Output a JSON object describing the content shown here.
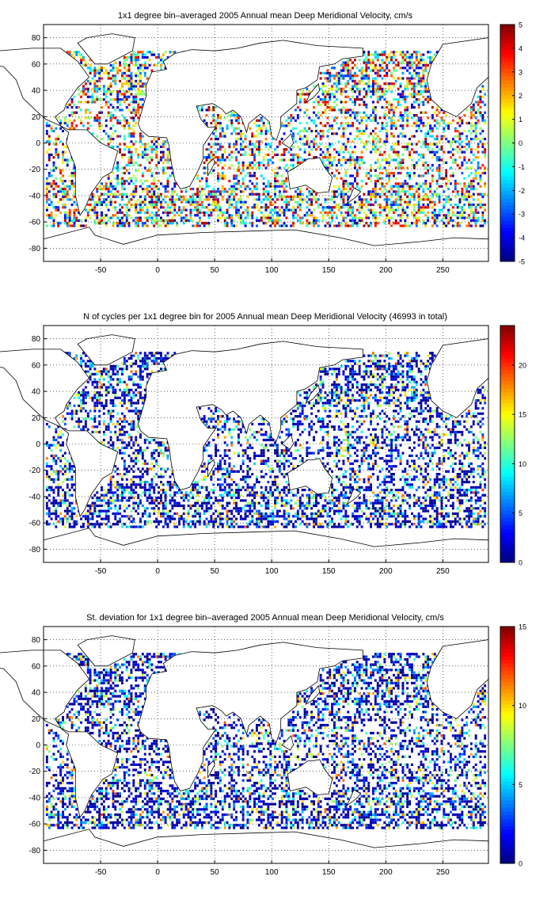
{
  "chart_data": [
    {
      "type": "heatmap",
      "title": "1x1 degree bin–averaged 2005 Annual mean Deep Meridional Velocity, cm/s",
      "xlim": [
        -100,
        290
      ],
      "ylim": [
        -90,
        90
      ],
      "x_ticks": [
        "-50",
        "0",
        "50",
        "100",
        "150",
        "200",
        "250"
      ],
      "y_ticks": [
        "80",
        "60",
        "40",
        "20",
        "0",
        "-20",
        "-40",
        "-60",
        "-80"
      ],
      "colorbar": {
        "min": -5,
        "max": 5,
        "ticks": [
          "5",
          "4",
          "3",
          "2",
          "1",
          "0",
          "-1",
          "-2",
          "-3",
          "-4",
          "-5"
        ]
      },
      "grid": true,
      "colormap": "jet"
    },
    {
      "type": "heatmap",
      "title": "N of cycles per 1x1 degree bin for 2005 Annual mean Deep Meridional Velocity (46993 in total)",
      "xlim": [
        -100,
        290
      ],
      "ylim": [
        -90,
        90
      ],
      "x_ticks": [
        "-50",
        "0",
        "50",
        "100",
        "150",
        "200",
        "250"
      ],
      "y_ticks": [
        "80",
        "60",
        "40",
        "20",
        "0",
        "-20",
        "-40",
        "-60",
        "-80"
      ],
      "colorbar": {
        "min": 0,
        "max": 24,
        "ticks": [
          "20",
          "15",
          "10",
          "5",
          "0"
        ]
      },
      "grid": true,
      "colormap": "jet"
    },
    {
      "type": "heatmap",
      "title": "St. deviation for 1x1 degree bin–averaged 2005 Annual mean Deep Meridional Velocity, cm/s",
      "xlim": [
        -100,
        290
      ],
      "ylim": [
        -90,
        90
      ],
      "x_ticks": [
        "-50",
        "0",
        "50",
        "100",
        "150",
        "200",
        "250"
      ],
      "y_ticks": [
        "80",
        "60",
        "40",
        "20",
        "0",
        "-20",
        "-40",
        "-60",
        "-80"
      ],
      "colorbar": {
        "min": 0,
        "max": 15,
        "ticks": [
          "15",
          "10",
          "5",
          "0"
        ]
      },
      "grid": true,
      "colormap": "jet"
    }
  ]
}
